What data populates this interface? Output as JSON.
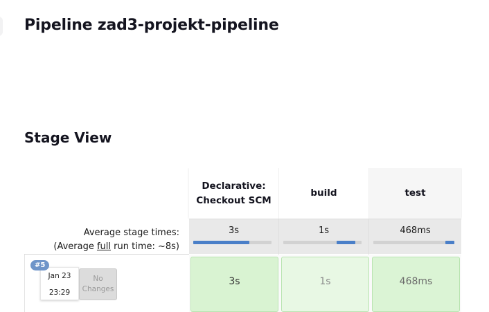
{
  "page": {
    "title": "Pipeline zad3-projekt-pipeline"
  },
  "stage_view": {
    "title": "Stage View",
    "stages": [
      {
        "name_line1": "Declarative:",
        "name_line2": "Checkout SCM",
        "avg_time": "3s",
        "bar_start": 0.0,
        "bar_fraction": 0.72
      },
      {
        "name_line1": "build",
        "name_line2": "",
        "avg_time": "1s",
        "bar_start": 0.68,
        "bar_fraction": 0.24
      },
      {
        "name_line1": "test",
        "name_line2": "",
        "avg_time": "468ms",
        "bar_start": 0.89,
        "bar_fraction": 0.11
      }
    ],
    "avg_label_line1": "Average stage times:",
    "avg_label_prefix": "(Average ",
    "avg_label_full": "full",
    "avg_label_suffix": " run time: ~8s)",
    "builds": [
      {
        "badge": "#5",
        "date": "Jan 23",
        "time": "23:29",
        "changes_line1": "No",
        "changes_line2": "Changes",
        "stage_times": [
          "3s",
          "1s",
          "468ms"
        ]
      }
    ],
    "colors": {
      "bar_fill": "#4a7fc8",
      "success_cell": "#d9f3d2",
      "badge": "#6f95c9"
    }
  }
}
